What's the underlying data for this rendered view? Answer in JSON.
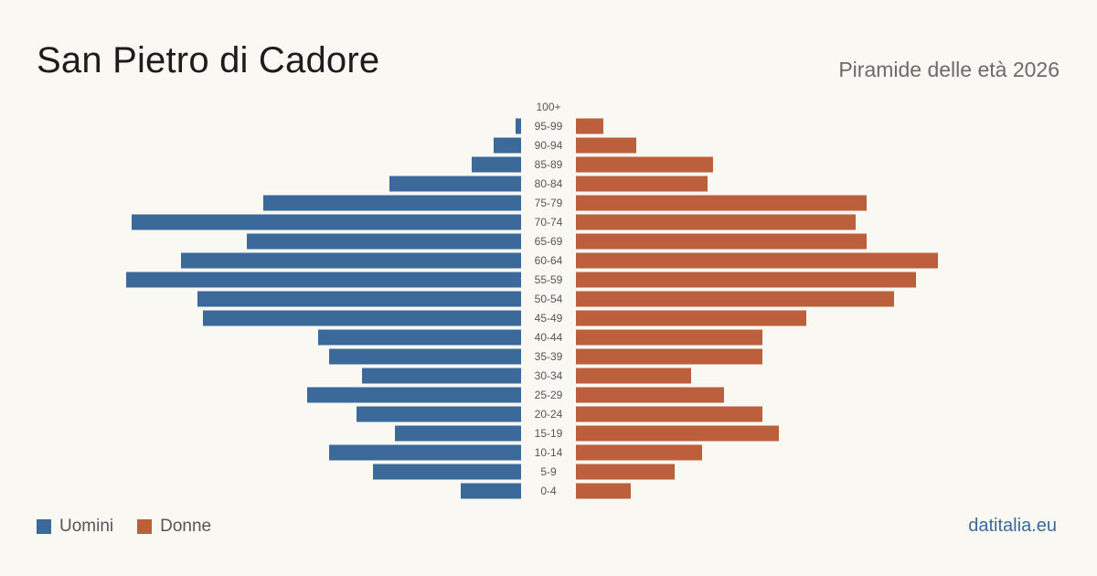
{
  "header": {
    "title": "San Pietro di Cadore",
    "subtitle": "Piramide delle età 2026"
  },
  "footer": {
    "brand": "datitalia.eu"
  },
  "colors": {
    "male": "#3b6a9a",
    "female": "#bc5f3d",
    "label": "#555555"
  },
  "chart_data": {
    "type": "bar",
    "orientation": "horizontal-pyramid",
    "categories": [
      "100+",
      "95-99",
      "90-94",
      "85-89",
      "80-84",
      "75-79",
      "70-74",
      "65-69",
      "60-64",
      "55-59",
      "50-54",
      "45-49",
      "40-44",
      "35-39",
      "30-34",
      "25-29",
      "20-24",
      "15-19",
      "10-14",
      "5-9",
      "0-4"
    ],
    "series": [
      {
        "name": "Uomini",
        "color": "#3b6a9a",
        "values": [
          0,
          1,
          5,
          9,
          24,
          47,
          71,
          50,
          62,
          72,
          59,
          58,
          37,
          35,
          29,
          39,
          30,
          23,
          35,
          27,
          11
        ]
      },
      {
        "name": "Donne",
        "color": "#bc5f3d",
        "values": [
          0,
          5,
          11,
          25,
          24,
          53,
          51,
          53,
          66,
          62,
          58,
          42,
          34,
          34,
          21,
          27,
          34,
          37,
          23,
          18,
          10
        ]
      }
    ],
    "legend": "bottom-left",
    "grid": false
  }
}
